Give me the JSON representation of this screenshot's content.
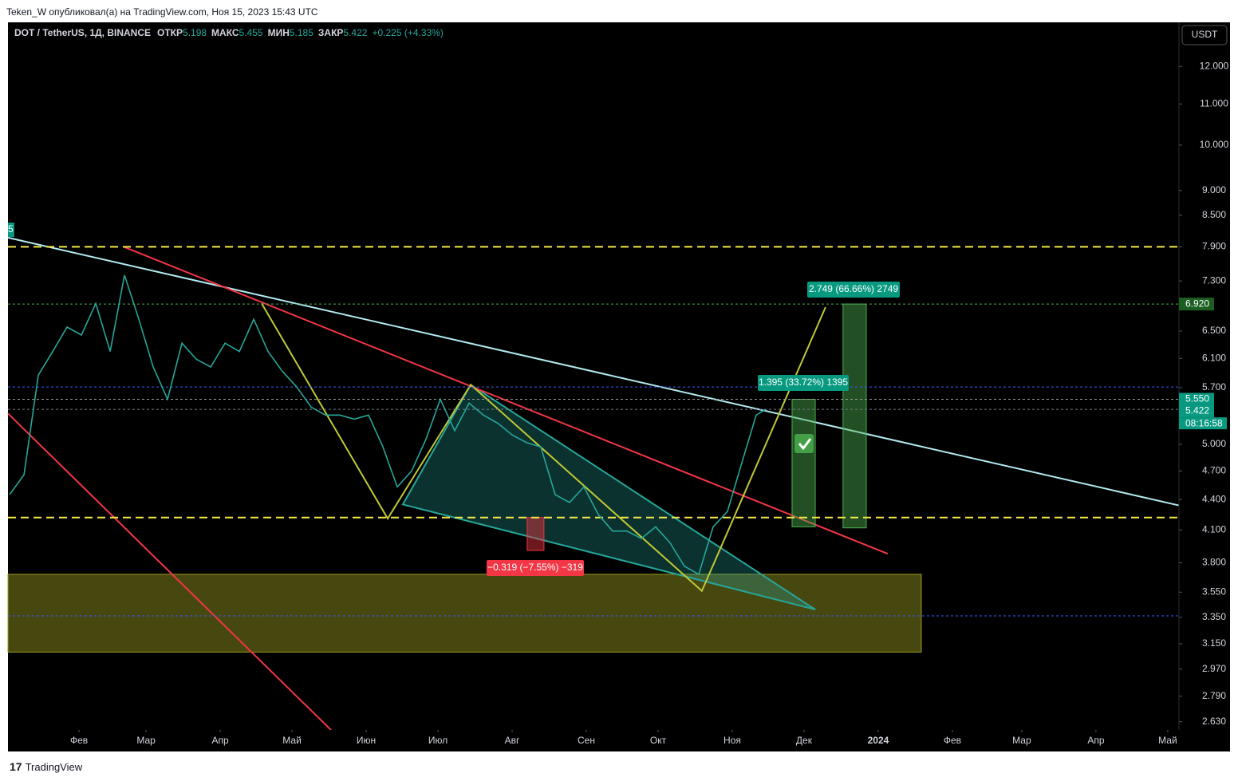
{
  "published": "Teken_W опубликовал(а) на TradingView.com, Ноя 15, 2023 15:43 UTC",
  "footer": "TradingView",
  "chart_data": {
    "type": "line",
    "header": {
      "symbol": "DOT / TetherUS, 1Д, BINANCE",
      "open_label": "ОТКР",
      "open": 5.198,
      "high_label": "МАКС",
      "high": 5.455,
      "low_label": "МИН",
      "low": 5.185,
      "close_label": "ЗАКР",
      "close": 5.422,
      "change": "+0.225 (+4.33%)"
    },
    "currency": "USDT",
    "left_label": "5",
    "x": [
      3,
      9,
      15,
      21,
      27,
      33,
      39,
      45,
      51,
      57,
      63,
      69,
      75,
      81,
      87,
      93,
      99,
      105,
      111,
      117,
      123,
      129,
      135,
      141,
      147,
      153,
      159,
      165,
      171,
      177,
      183,
      189,
      195,
      201,
      207,
      213,
      219,
      225,
      231,
      237,
      243,
      249,
      255,
      261,
      267,
      273,
      279,
      285,
      291,
      297,
      303,
      309,
      315,
      319
    ],
    "series": [
      {
        "color": "#26a69a",
        "values": [
          4.45,
          4.66,
          5.87,
          6.2,
          6.56,
          6.44,
          6.93,
          6.2,
          7.4,
          6.68,
          5.98,
          5.55,
          6.32,
          6.09,
          5.98,
          6.32,
          6.2,
          6.68,
          6.2,
          5.92,
          5.71,
          5.45,
          5.35,
          5.35,
          5.3,
          5.35,
          4.97,
          4.53,
          4.7,
          5.06,
          5.55,
          5.16,
          5.5,
          5.35,
          5.25,
          5.11,
          5.02,
          4.97,
          4.45,
          4.37,
          4.53,
          4.25,
          4.09,
          4.09,
          4.02,
          4.13,
          3.98,
          3.77,
          3.7,
          4.13,
          4.28,
          4.79,
          5.35,
          5.422
        ]
      }
    ],
    "log_scale": true,
    "grid": false,
    "xlim": [
      2.3,
      491.7
    ],
    "xticks": [
      {
        "value": 32,
        "label": "Фев"
      },
      {
        "value": 60,
        "label": "Мар"
      },
      {
        "value": 91,
        "label": "Апр"
      },
      {
        "value": 121,
        "label": "Май"
      },
      {
        "value": 152,
        "label": "Июн"
      },
      {
        "value": 182,
        "label": "Июл"
      },
      {
        "value": 213,
        "label": "Авг"
      },
      {
        "value": 244,
        "label": "Сен"
      },
      {
        "value": 274,
        "label": "Окт"
      },
      {
        "value": 305,
        "label": "Ноя"
      },
      {
        "value": 335,
        "label": "Дек"
      },
      {
        "value": 366,
        "label": "2024"
      },
      {
        "value": 397,
        "label": "Фев"
      },
      {
        "value": 426,
        "label": "Мар"
      },
      {
        "value": 457,
        "label": "Апр"
      },
      {
        "value": 487,
        "label": "Май"
      }
    ],
    "ylim": [
      2.58,
      13.24
    ],
    "yticks": [
      {
        "value": 12,
        "label": "12.000"
      },
      {
        "value": 11,
        "label": "11.000"
      },
      {
        "value": 10,
        "label": "10.000"
      },
      {
        "value": 9,
        "label": "9.000"
      },
      {
        "value": 8.5,
        "label": "8.500"
      },
      {
        "value": 7.9,
        "label": "7.900"
      },
      {
        "value": 7.3,
        "label": "7.300"
      },
      {
        "value": 6.5,
        "label": "6.500"
      },
      {
        "value": 6.1,
        "label": "6.100"
      },
      {
        "value": 5.7,
        "label": "5.700"
      },
      {
        "value": 5,
        "label": "5.000"
      },
      {
        "value": 4.7,
        "label": "4.700"
      },
      {
        "value": 4.4,
        "label": "4.400"
      },
      {
        "value": 4.1,
        "label": "4.100"
      },
      {
        "value": 3.8,
        "label": "3.800"
      },
      {
        "value": 3.55,
        "label": "3.550"
      },
      {
        "value": 3.35,
        "label": "3.350"
      },
      {
        "value": 3.15,
        "label": "3.150"
      },
      {
        "value": 2.97,
        "label": "2.970"
      },
      {
        "value": 2.79,
        "label": "2.790"
      },
      {
        "value": 2.63,
        "label": "2.630"
      }
    ],
    "levels": [
      {
        "value": 7.9,
        "color": "#f5e94b",
        "style": "dash"
      },
      {
        "value": 4.22,
        "color": "#f5e94b",
        "style": "dash"
      },
      {
        "value": 5.71,
        "color": "#3d5afe",
        "style": "dot"
      },
      {
        "value": 3.36,
        "color": "#3d5afe",
        "style": "dot"
      },
      {
        "value": 6.92,
        "color": "#4caf50",
        "style": "dot"
      },
      {
        "value": 5.55,
        "color": "#9e9e9e",
        "style": "dot"
      },
      {
        "value": 5.422,
        "color": "#787b86",
        "style": "dot"
      }
    ],
    "price_labels": [
      {
        "value": 6.92,
        "label": "6.920",
        "color": "#1b5e20"
      },
      {
        "value": 5.55,
        "label": "5.550",
        "color": "#089981"
      },
      {
        "value": 5.422,
        "label": "5.422",
        "color": "#089981"
      }
    ],
    "countdown": "08:16:58",
    "drawings": [
      {
        "kind": "box",
        "color": "#9e9d24",
        "points": [
          [
            2.3,
            3.7
          ],
          [
            384,
            3.09
          ]
        ]
      },
      {
        "kind": "polygon",
        "color": "#26a69a",
        "points": [
          [
            167.3,
            4.35
          ],
          [
            195.7,
            5.74
          ],
          [
            339.7,
            3.41
          ]
        ]
      },
      {
        "kind": "line",
        "color": "#b2ebf2",
        "points": [
          [
            2.3,
            8.07
          ],
          [
            491.7,
            4.34
          ]
        ]
      },
      {
        "kind": "line",
        "color": "#f23645",
        "points": [
          [
            50.7,
            7.9
          ],
          [
            370,
            3.88
          ]
        ]
      },
      {
        "kind": "line",
        "color": "#f23645",
        "points": [
          [
            2.3,
            5.37
          ],
          [
            137.3,
            2.58
          ]
        ]
      },
      {
        "kind": "line",
        "color": "#c0ca33",
        "points": [
          [
            108.3,
            6.93
          ],
          [
            161,
            4.21
          ],
          [
            195.7,
            5.74
          ],
          [
            292.3,
            3.56
          ],
          [
            344,
            6.87
          ]
        ]
      },
      {
        "kind": "box",
        "color": "#4caf50",
        "points": [
          [
            330,
            5.55
          ],
          [
            339.7,
            4.13
          ]
        ]
      },
      {
        "kind": "box",
        "color": "#4caf50",
        "points": [
          [
            351.3,
            6.92
          ],
          [
            361,
            4.12
          ]
        ]
      },
      {
        "kind": "box",
        "color": "#f23645",
        "points": [
          [
            219.3,
            4.22
          ],
          [
            226.3,
            3.91
          ]
        ]
      }
    ],
    "annotations": [
      "2.749 (66.66%) 2749",
      "1.395 (33.72%) 1395",
      "−0.319 (−7.55%) −319"
    ]
  }
}
